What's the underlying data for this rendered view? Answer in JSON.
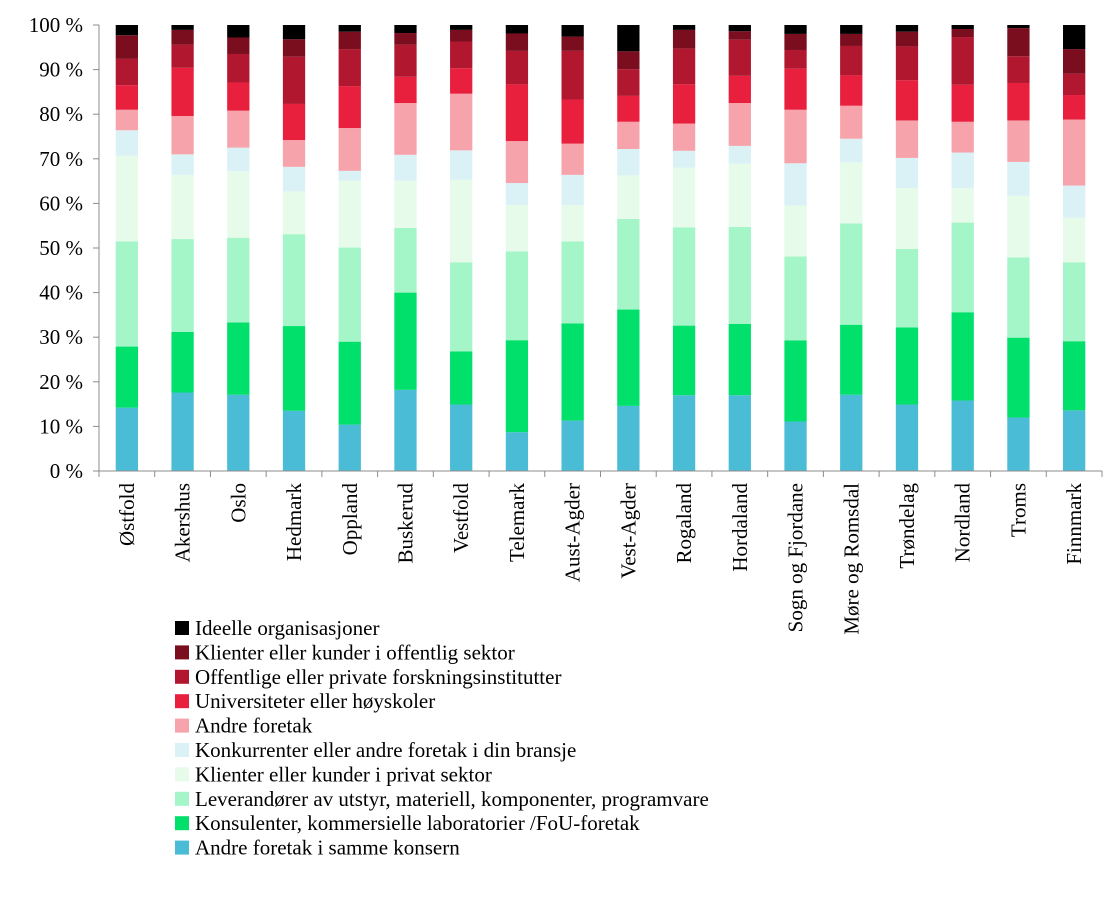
{
  "chart_data": {
    "type": "bar",
    "stacked": true,
    "normalized": true,
    "categories": [
      "Østfold",
      "Akershus",
      "Oslo",
      "Hedmark",
      "Oppland",
      "Buskerud",
      "Vestfold",
      "Telemark",
      "Aust-Agder",
      "Vest-Agder",
      "Rogaland",
      "Hordaland",
      "Sogn og Fjordane",
      "Møre og Romsdal",
      "Trøndelag",
      "Nordland",
      "Troms",
      "Finnmark"
    ],
    "ylim": [
      0,
      100
    ],
    "y_ticks": [
      0,
      10,
      20,
      30,
      40,
      50,
      60,
      70,
      80,
      90,
      100
    ],
    "y_tick_suffix": " %",
    "grid": false,
    "legend_position": "bottom",
    "series": [
      {
        "name": "Andre foretak i samme konsern",
        "color": "#4bbcd6",
        "values": [
          14.2,
          17.6,
          17.1,
          13.5,
          10.4,
          18.2,
          14.9,
          8.7,
          11.3,
          14.6,
          17.0,
          17.0,
          11.1,
          17.1,
          14.9,
          15.8,
          12.0,
          13.6
        ]
      },
      {
        "name": "Konsulenter, kommersielle laboratorier /FoU-foretak",
        "color": "#00e06a",
        "values": [
          13.7,
          13.6,
          16.2,
          19.0,
          18.6,
          21.8,
          11.9,
          20.6,
          21.8,
          21.6,
          15.6,
          16.0,
          18.2,
          15.7,
          17.3,
          19.8,
          17.9,
          15.5
        ]
      },
      {
        "name": "Leverandører av utstyr, materiell, komponenter, programvare",
        "color": "#a4f5c8",
        "values": [
          23.6,
          20.8,
          19.0,
          20.6,
          21.1,
          14.5,
          20.0,
          19.9,
          18.4,
          20.3,
          22.0,
          21.7,
          18.8,
          22.7,
          17.6,
          20.1,
          18.0,
          17.7
        ]
      },
      {
        "name": "Klienter eller kunder i privat sektor",
        "color": "#e6fbe9",
        "values": [
          19.2,
          14.4,
          14.9,
          9.6,
          15.0,
          10.6,
          18.5,
          10.4,
          8.1,
          9.8,
          13.4,
          14.2,
          11.4,
          13.7,
          13.6,
          7.7,
          13.8,
          10.0
        ]
      },
      {
        "name": "Konkurrenter eller andre foretak i din bransje",
        "color": "#daf1f5",
        "values": [
          5.7,
          4.6,
          5.3,
          5.5,
          2.2,
          5.8,
          6.6,
          4.9,
          6.8,
          5.9,
          3.8,
          4.0,
          9.5,
          5.3,
          6.8,
          8.0,
          7.6,
          7.2
        ]
      },
      {
        "name": "Andre foretak",
        "color": "#f6a3ab",
        "values": [
          4.6,
          8.6,
          8.3,
          6.0,
          9.6,
          11.6,
          12.7,
          9.4,
          7.0,
          6.1,
          6.1,
          9.6,
          12.0,
          7.4,
          8.4,
          6.9,
          9.3,
          14.8
        ]
      },
      {
        "name": "Universiteter eller høyskoler",
        "color": "#e8203d",
        "values": [
          5.5,
          10.8,
          6.3,
          8.1,
          9.4,
          5.9,
          5.7,
          12.7,
          9.9,
          5.8,
          8.8,
          6.1,
          9.2,
          6.8,
          9.0,
          8.3,
          8.4,
          5.5
        ]
      },
      {
        "name": "Offentlige eller private forskningsinstitutter",
        "color": "#b21730",
        "values": [
          5.9,
          5.2,
          6.4,
          10.6,
          8.3,
          7.2,
          6.0,
          7.5,
          10.9,
          6.0,
          8.0,
          8.1,
          4.2,
          6.6,
          7.6,
          10.7,
          6.0,
          4.8
        ]
      },
      {
        "name": "Klienter eller kunder i offentlig sektor",
        "color": "#7a0e1f",
        "values": [
          5.3,
          3.3,
          3.7,
          3.9,
          3.9,
          2.6,
          2.6,
          3.9,
          3.2,
          4.0,
          4.2,
          1.9,
          3.6,
          2.7,
          3.3,
          1.8,
          6.3,
          5.5
        ]
      },
      {
        "name": "Ideelle organisasjoner",
        "color": "#000000",
        "values": [
          2.3,
          1.1,
          2.8,
          3.2,
          1.5,
          1.8,
          1.1,
          1.9,
          2.6,
          5.9,
          1.1,
          1.4,
          2.0,
          2.0,
          1.5,
          0.9,
          0.7,
          5.4
        ]
      }
    ]
  }
}
